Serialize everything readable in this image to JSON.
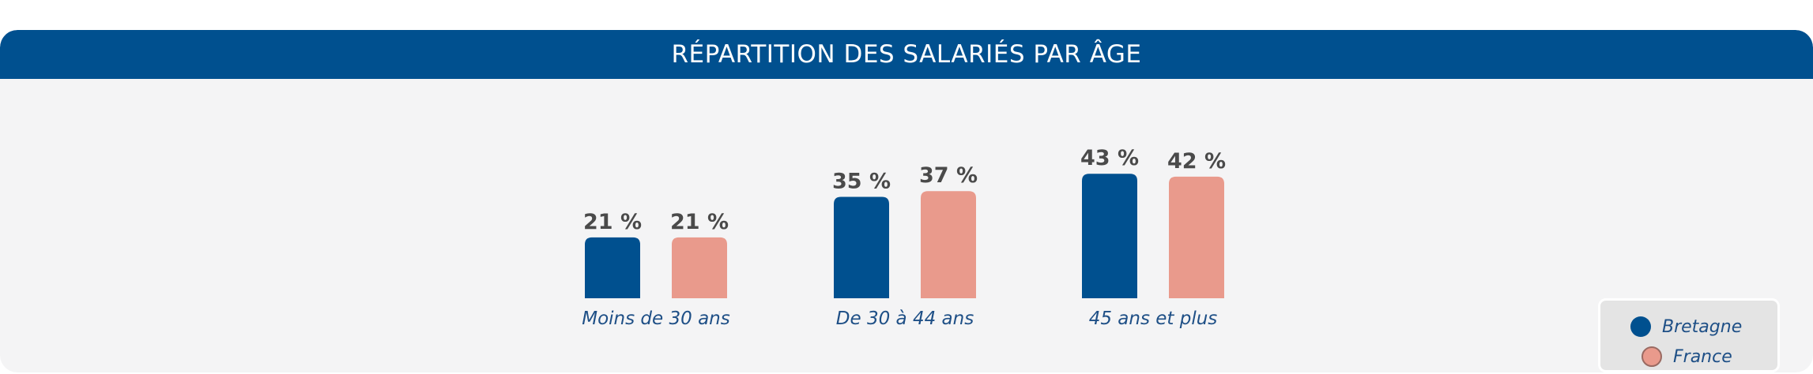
{
  "chart_data": {
    "type": "bar",
    "title": "RÉPARTITION DES SALARIÉS PAR ÂGE",
    "categories": [
      "Moins de 30 ans",
      "De 30 à 44 ans",
      "45 ans et plus"
    ],
    "series": [
      {
        "name": "Bretagne",
        "values": [
          21,
          35,
          43
        ],
        "labels": [
          "21 %",
          "35 %",
          "43 %"
        ],
        "color": "#00508f"
      },
      {
        "name": "France",
        "values": [
          21,
          37,
          42
        ],
        "labels": [
          "21 %",
          "37 %",
          "42 %"
        ],
        "color": "#e99a8c"
      }
    ],
    "ylim": [
      0,
      50
    ],
    "grid": false,
    "legend": "bottom-right"
  },
  "colors": {
    "header": "#00508f",
    "value_label": "#4a4a4a",
    "category_label": "#1e4f86"
  }
}
